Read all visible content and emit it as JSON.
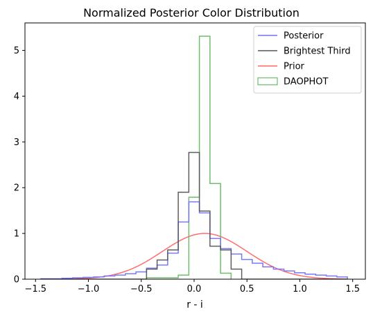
{
  "chart_data": {
    "type": "histogram",
    "title": "Normalized Posterior Color Distribution",
    "xlabel": "r - i",
    "ylabel": "",
    "xlim": [
      -1.6,
      1.62
    ],
    "ylim": [
      0,
      5.6
    ],
    "xticks": [
      -1.5,
      -1.0,
      -0.5,
      0.0,
      0.5,
      1.0,
      1.5
    ],
    "xtick_labels": [
      "−1.5",
      "−1.0",
      "−0.5",
      "0.0",
      "0.5",
      "1.0",
      "1.5"
    ],
    "yticks": [
      0,
      1,
      2,
      3,
      4,
      5
    ],
    "ytick_labels": [
      "0",
      "1",
      "2",
      "3",
      "4",
      "5"
    ],
    "legend_position": "top-right",
    "series": [
      {
        "name": "Posterior",
        "style": "step",
        "color": "#7070ff",
        "edges": [
          -1.45,
          -1.35,
          -1.25,
          -1.15,
          -1.05,
          -0.95,
          -0.85,
          -0.75,
          -0.65,
          -0.55,
          -0.45,
          -0.35,
          -0.25,
          -0.15,
          -0.05,
          0.05,
          0.15,
          0.25,
          0.35,
          0.45,
          0.55,
          0.65,
          0.75,
          0.85,
          0.95,
          1.05,
          1.15,
          1.25,
          1.35,
          1.45
        ],
        "values": [
          0.01,
          0.01,
          0.02,
          0.03,
          0.04,
          0.05,
          0.07,
          0.09,
          0.12,
          0.16,
          0.24,
          0.31,
          0.57,
          1.25,
          1.69,
          1.45,
          0.89,
          0.67,
          0.55,
          0.43,
          0.35,
          0.27,
          0.22,
          0.18,
          0.14,
          0.11,
          0.09,
          0.07,
          0.05
        ]
      },
      {
        "name": "Brightest Third",
        "style": "step",
        "color": "#555555",
        "edges": [
          -1.45,
          -1.35,
          -1.25,
          -1.15,
          -1.05,
          -0.95,
          -0.85,
          -0.75,
          -0.65,
          -0.55,
          -0.45,
          -0.35,
          -0.25,
          -0.15,
          -0.05,
          0.05,
          0.15,
          0.25,
          0.35,
          0.45,
          0.55,
          0.65,
          0.75,
          0.85,
          0.95,
          1.05,
          1.15,
          1.25,
          1.35,
          1.45
        ],
        "values": [
          0,
          0,
          0,
          0,
          0,
          0,
          0,
          0,
          0,
          0,
          0.22,
          0.42,
          0.64,
          1.9,
          2.77,
          1.49,
          0.72,
          0.64,
          0.22,
          0,
          0,
          0,
          0,
          0,
          0,
          0,
          0,
          0,
          0
        ]
      },
      {
        "name": "Prior",
        "style": "line",
        "color": "#ff6666",
        "mean": 0.1,
        "sigma": 0.4,
        "peak": 1.0,
        "x_range": [
          -1.45,
          1.45
        ]
      },
      {
        "name": "DAOPHOT",
        "style": "step",
        "color": "#66bb66",
        "edges": [
          -0.45,
          -0.35,
          -0.25,
          -0.15,
          -0.05,
          0.05,
          0.15,
          0.25,
          0.35
        ],
        "values": [
          0.03,
          0.03,
          0.03,
          0.09,
          1.79,
          5.31,
          2.09,
          0.13
        ]
      }
    ]
  }
}
